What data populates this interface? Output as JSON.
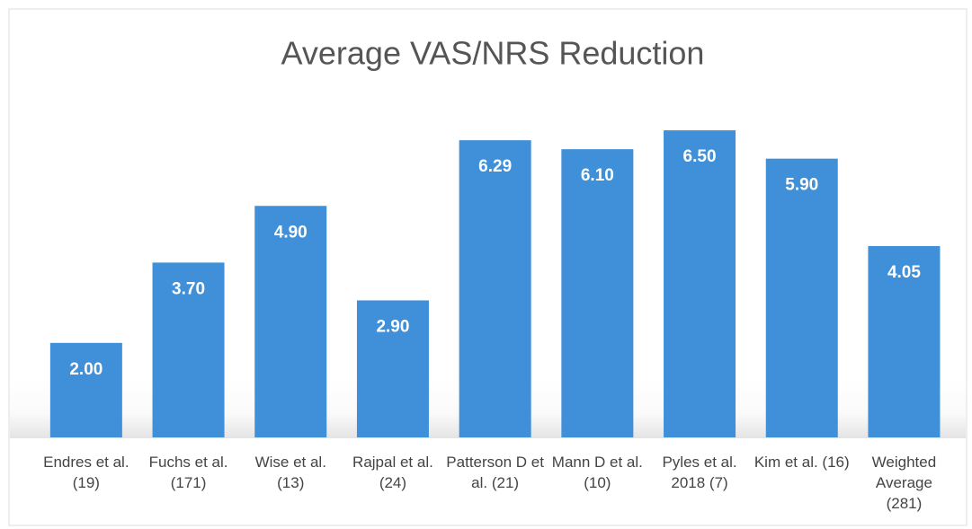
{
  "chart_data": {
    "type": "bar",
    "title": "Average VAS/NRS Reduction",
    "categories": [
      "Endres et al. (19)",
      "Fuchs et al. (171)",
      "Wise et al. (13)",
      "Rajpal et al. (24)",
      "Patterson D et al. (21)",
      "Mann D et al. (10)",
      "Pyles et al. 2018 (7)",
      "Kim et al. (16)",
      "Weighted Average (281)"
    ],
    "values": [
      2,
      3.7,
      4.9,
      2.9,
      6.29,
      6.1,
      6.5,
      5.9,
      4.05
    ],
    "value_labels": [
      "2.00",
      "3.70",
      "4.90",
      "2.90",
      "6.29",
      "6.10",
      "6.50",
      "5.90",
      "4.05"
    ],
    "color": "#3f90d8",
    "ylim": [
      0,
      7
    ]
  }
}
